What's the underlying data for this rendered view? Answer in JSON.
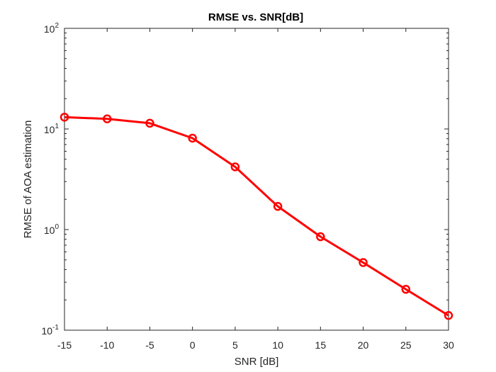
{
  "chart_data": {
    "type": "line",
    "title": "RMSE vs. SNR[dB]",
    "xlabel": "SNR [dB]",
    "ylabel": "RMSE of AOA estimation",
    "xlim": [
      -15,
      30
    ],
    "ylim": [
      0.1,
      100
    ],
    "yscale": "log",
    "grid": false,
    "x_ticks": [
      -15,
      -10,
      -5,
      0,
      5,
      10,
      15,
      20,
      25,
      30
    ],
    "y_ticks": [
      {
        "value": 0.1,
        "base": "10",
        "exp": "-1"
      },
      {
        "value": 1,
        "base": "10",
        "exp": "0"
      },
      {
        "value": 10,
        "base": "10",
        "exp": "1"
      },
      {
        "value": 100,
        "base": "10",
        "exp": "2"
      }
    ],
    "series": [
      {
        "color": "#ff0000",
        "marker": "circle",
        "x": [
          -15,
          -10,
          -5,
          0,
          5,
          10,
          15,
          20,
          25,
          30
        ],
        "y": [
          13.1,
          12.6,
          11.4,
          8.1,
          4.2,
          1.7,
          0.85,
          0.47,
          0.255,
          0.14
        ]
      }
    ]
  }
}
